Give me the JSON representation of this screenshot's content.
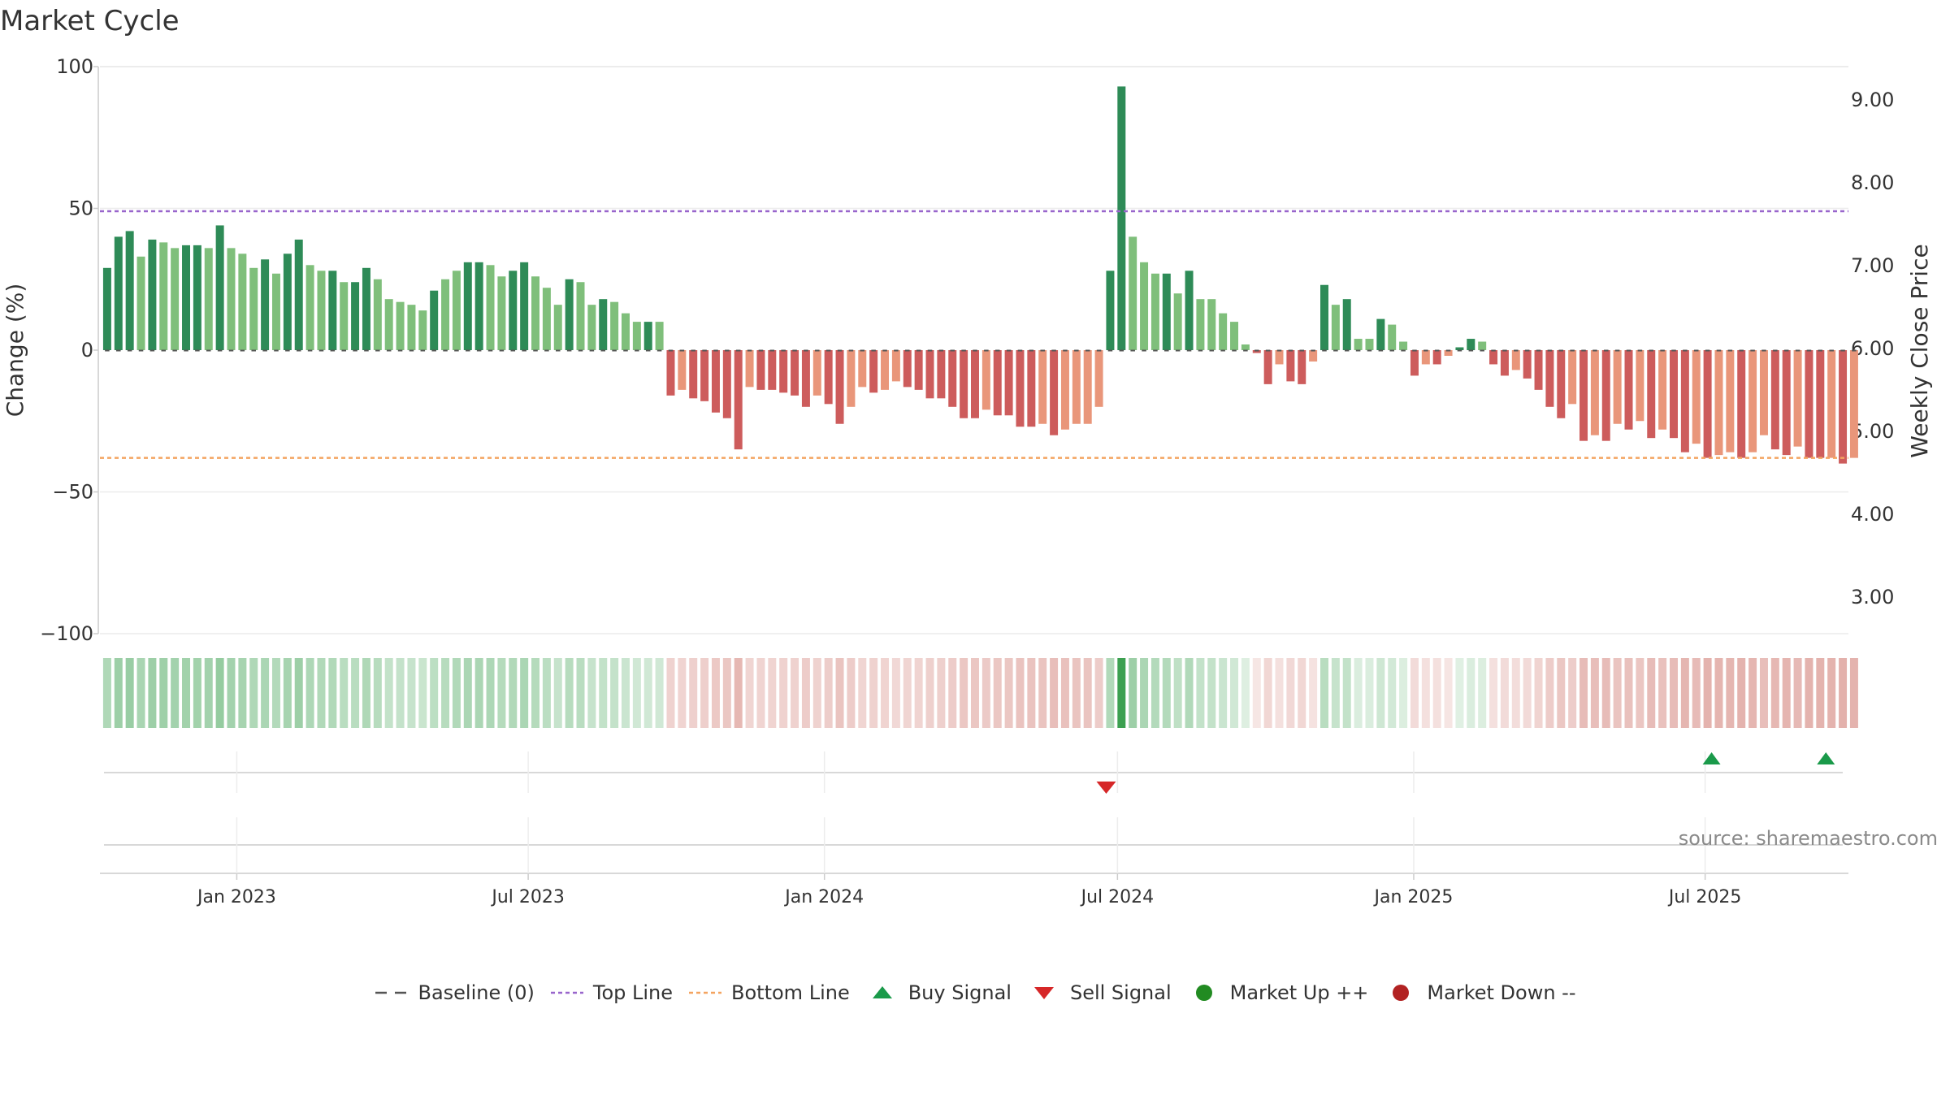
{
  "title": "Market Cycle",
  "source": "source: sharemaestro.com",
  "colors": {
    "up_strong": "#2e8b57",
    "up_weak": "#7fbf7b",
    "down_strong": "#cd5c5c",
    "down_weak": "#e9967a",
    "top_line": "#9966cc",
    "bottom_line": "#f4a460",
    "baseline": "#555555",
    "buy": "#1a9a4a",
    "sell": "#d62728",
    "market_up": "#228b22",
    "market_down": "#b22222"
  },
  "legend": [
    {
      "label": "Baseline (0)",
      "icon": "dash-line"
    },
    {
      "label": "Top Line",
      "icon": "dotted-line"
    },
    {
      "label": "Bottom Line",
      "icon": "dotted-line"
    },
    {
      "label": "Buy Signal",
      "icon": "triangle-up"
    },
    {
      "label": "Sell Signal",
      "icon": "triangle-down"
    },
    {
      "label": "Market Up ++",
      "icon": "circle"
    },
    {
      "label": "Market Down --",
      "icon": "circle"
    }
  ],
  "chart_data": {
    "type": "bar",
    "title": "Market Cycle",
    "ylabel": "Change (%)",
    "ylabel_right": "Weekly Close Price",
    "ylim": [
      -100,
      100
    ],
    "y_ticks": [
      "100",
      "50",
      "0",
      "−50",
      "−100"
    ],
    "y_tick_values": [
      100,
      50,
      0,
      -50,
      -100
    ],
    "y2lim": [
      2.5,
      9.3
    ],
    "y2_ticks": [
      "9.00",
      "8.00",
      "7.00",
      "6.00",
      "5.00",
      "4.00",
      "3.00"
    ],
    "y2_tick_values": [
      9,
      8,
      7,
      6,
      5,
      4,
      3
    ],
    "x_start": "2022-10-08",
    "x_end": "2025-09-28",
    "x_ticks": [
      "Jan 2023",
      "Jul 2023",
      "Jan 2024",
      "Jul 2024",
      "Jan 2025",
      "Jul 2025"
    ],
    "x_tick_dates": [
      "2023-01-01",
      "2023-07-01",
      "2024-01-01",
      "2024-07-01",
      "2025-01-01",
      "2025-07-01"
    ],
    "first_week": "2022-10-09",
    "top_line": 49,
    "bottom_line": -38,
    "grid": true,
    "legend_position": "bottom",
    "values": [
      29,
      40,
      42,
      33,
      39,
      38,
      36,
      37,
      37,
      36,
      44,
      36,
      34,
      29,
      32,
      27,
      34,
      39,
      30,
      28,
      28,
      24,
      24,
      29,
      25,
      18,
      17,
      16,
      14,
      21,
      25,
      28,
      31,
      31,
      30,
      26,
      28,
      31,
      26,
      22,
      16,
      25,
      24,
      16,
      18,
      17,
      13,
      10,
      10,
      10,
      -16,
      -14,
      -17,
      -18,
      -22,
      -24,
      -35,
      -13,
      -14,
      -14,
      -15,
      -16,
      -20,
      -16,
      -19,
      -26,
      -20,
      -13,
      -15,
      -14,
      -11,
      -13,
      -14,
      -17,
      -17,
      -20,
      -24,
      -24,
      -21,
      -23,
      -23,
      -27,
      -27,
      -26,
      -30,
      -28,
      -26,
      -26,
      -20,
      28,
      93,
      40,
      31,
      27,
      27,
      20,
      28,
      18,
      18,
      13,
      10,
      2,
      -1,
      -12,
      -5,
      -11,
      -12,
      -4,
      23,
      16,
      18,
      4,
      4,
      11,
      9,
      3,
      -9,
      -5,
      -5,
      -2,
      1,
      4,
      3,
      -5,
      -9,
      -7,
      -10,
      -14,
      -20,
      -24,
      -19,
      -32,
      -30,
      -32,
      -26,
      -28,
      -25,
      -31,
      -28,
      -31,
      -36,
      -33,
      -38,
      -37,
      -36,
      -38,
      -36,
      -30,
      -35,
      -37,
      -34,
      -38,
      -38,
      -38,
      -40,
      -38
    ],
    "intensity": [
      1,
      1,
      1,
      0,
      1,
      0,
      0,
      1,
      1,
      0,
      1,
      0,
      0,
      0,
      1,
      0,
      1,
      1,
      0,
      0,
      1,
      0,
      1,
      1,
      0,
      0,
      0,
      0,
      0,
      1,
      0,
      0,
      1,
      1,
      0,
      0,
      1,
      1,
      0,
      0,
      0,
      1,
      0,
      0,
      1,
      0,
      0,
      0,
      1,
      0,
      1,
      0,
      1,
      1,
      1,
      1,
      1,
      0,
      1,
      1,
      1,
      1,
      1,
      0,
      1,
      1,
      0,
      0,
      1,
      0,
      0,
      1,
      1,
      1,
      1,
      1,
      1,
      1,
      0,
      1,
      1,
      1,
      1,
      0,
      1,
      0,
      0,
      0,
      0,
      1,
      1,
      0,
      0,
      0,
      1,
      0,
      1,
      0,
      0,
      0,
      0,
      0,
      1,
      1,
      0,
      1,
      1,
      0,
      1,
      0,
      1,
      0,
      0,
      1,
      0,
      0,
      1,
      0,
      1,
      0,
      1,
      1,
      0,
      1,
      1,
      0,
      1,
      1,
      1,
      1,
      0,
      1,
      0,
      1,
      0,
      1,
      0,
      1,
      0,
      1,
      1,
      0,
      1,
      0,
      0,
      1,
      0,
      0,
      1,
      1,
      0,
      1,
      1,
      0,
      1,
      0
    ],
    "signals": [
      {
        "type": "sell",
        "date": "2024-06-24"
      },
      {
        "type": "buy",
        "date": "2025-07-05"
      },
      {
        "type": "buy",
        "date": "2025-09-14"
      }
    ]
  }
}
